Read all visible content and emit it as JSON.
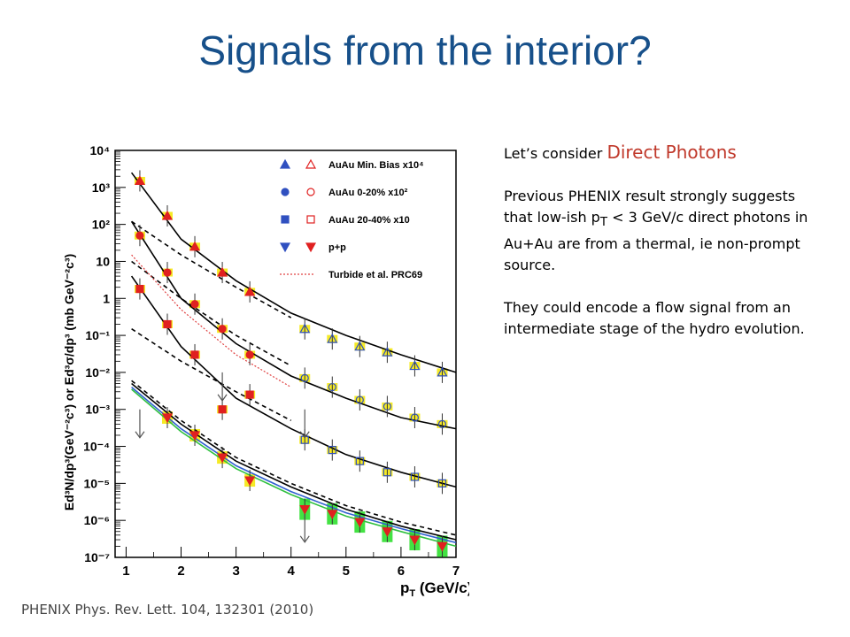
{
  "slide": {
    "title": "Signals from the interior?",
    "citation": "PHENIX Phys. Rev. Lett. 104, 132301 (2010)"
  },
  "text": {
    "line1_prefix": "Let’s consider ",
    "line1_emph": "Direct Photons",
    "para2_a": "Previous PHENIX result strongly suggests that low-ish p",
    "para2_sub": "T",
    "para2_b": " < 3 GeV/c direct photons in Au+Au are from a thermal, ie non-prompt source.",
    "para3": "They could encode a flow signal from an intermediate stage of the hydro evolution."
  },
  "colors": {
    "title": "#17508a",
    "emphasis": "#c0392b",
    "red_markers": "#e02020",
    "blue_markers": "#3050c0",
    "yellow_band": "#f3e600",
    "green_band": "#22dd22"
  },
  "chart_data": {
    "type": "scatter",
    "xlabel": "p_T (GeV/c)",
    "ylabel": "Ed³N/dp³(GeV⁻²c³) or Ed³σ/dp³ (mb GeV⁻²c³)",
    "xlim": [
      0.8,
      7
    ],
    "ylim": [
      1e-07,
      10000.0
    ],
    "yscale": "log",
    "x_ticks": [
      "1",
      "2",
      "3",
      "4",
      "5",
      "6",
      "7"
    ],
    "y_ticks": [
      "10⁻⁷",
      "10⁻⁶",
      "10⁻⁵",
      "10⁻⁴",
      "10⁻³",
      "10⁻²",
      "10⁻¹",
      "1",
      "10",
      "10²",
      "10³",
      "10⁴"
    ],
    "legend": {
      "placement": "top-right",
      "entries": [
        "AuAu Min. Bias x10⁴",
        "AuAu 0-20% x10²",
        "AuAu 20-40% x10",
        "p+p",
        "Turbide et al. PRC69"
      ]
    },
    "series": [
      {
        "name": "AuAu Min. Bias x10⁴",
        "marker": "triangle",
        "x": [
          1.25,
          1.75,
          2.25,
          2.75,
          3.25,
          4.25,
          4.75,
          5.25,
          5.75,
          6.25,
          6.75
        ],
        "y": [
          1500,
          170,
          25,
          5,
          1.5,
          0.15,
          0.08,
          0.05,
          0.035,
          0.015,
          0.01
        ]
      },
      {
        "name": "AuAu 0-20% x10²",
        "marker": "circle",
        "x": [
          1.25,
          1.75,
          2.25,
          2.75,
          3.25,
          4.25,
          4.75,
          5.25,
          5.75,
          6.25,
          6.75
        ],
        "y": [
          50,
          5,
          0.7,
          0.15,
          0.03,
          0.007,
          0.004,
          0.0018,
          0.0012,
          0.0006,
          0.0004
        ]
      },
      {
        "name": "AuAu 20-40% x10",
        "marker": "square",
        "x": [
          1.25,
          1.75,
          2.25,
          2.75,
          3.25,
          4.25,
          4.75,
          5.25,
          5.75,
          6.25,
          6.75
        ],
        "y": [
          1.8,
          0.2,
          0.03,
          0.001,
          0.0025,
          0.00015,
          8e-05,
          4e-05,
          2e-05,
          1.5e-05,
          1e-05
        ]
      },
      {
        "name": "p+p",
        "marker": "triangle-down",
        "x": [
          1.75,
          2.25,
          2.75,
          3.25,
          4.25,
          4.75,
          5.25,
          5.75,
          6.25,
          6.75
        ],
        "y": [
          0.0006,
          0.0002,
          5e-05,
          1.2e-05,
          2e-06,
          1.5e-06,
          9e-07,
          5e-07,
          3e-07,
          2e-07
        ]
      }
    ],
    "upper_limits": [
      {
        "x": 1.25,
        "y": 0.001
      },
      {
        "x": 2.75,
        "y": 0.01
      },
      {
        "x": 4.25,
        "y": 0.001
      },
      {
        "x": 4.25,
        "y": 1.5e-06
      }
    ],
    "curves": [
      {
        "style": "solid",
        "x": [
          1.1,
          2,
          3,
          4,
          5,
          6,
          7
        ],
        "y": [
          2500,
          40,
          3,
          0.4,
          0.1,
          0.03,
          0.01
        ]
      },
      {
        "style": "dashed",
        "x": [
          1.1,
          2,
          3,
          4
        ],
        "y": [
          120,
          15,
          2,
          0.3
        ]
      },
      {
        "style": "solid",
        "x": [
          1.1,
          2,
          3,
          4,
          5,
          6,
          7
        ],
        "y": [
          120,
          1,
          0.06,
          0.008,
          0.002,
          0.0006,
          0.0003
        ]
      },
      {
        "style": "dashed",
        "x": [
          1.1,
          2,
          3,
          4
        ],
        "y": [
          10,
          1,
          0.1,
          0.015
        ]
      },
      {
        "style": "dotted-red",
        "x": [
          1.1,
          2,
          3,
          4
        ],
        "y": [
          15,
          0.5,
          0.03,
          0.004
        ]
      },
      {
        "style": "solid",
        "x": [
          1.1,
          2,
          3,
          4,
          5,
          6,
          7
        ],
        "y": [
          4,
          0.05,
          0.002,
          0.0003,
          6e-05,
          2e-05,
          8e-06
        ]
      },
      {
        "style": "dashed",
        "x": [
          1.1,
          2,
          3,
          4
        ],
        "y": [
          0.15,
          0.02,
          0.003,
          0.0005
        ]
      },
      {
        "style": "solid",
        "x": [
          1.1,
          2,
          3,
          4,
          5,
          6,
          7
        ],
        "y": [
          0.005,
          0.0004,
          4e-05,
          8e-06,
          2e-06,
          7e-07,
          3e-07
        ]
      },
      {
        "style": "dashed",
        "x": [
          1.1,
          2,
          3,
          4,
          5,
          6,
          7
        ],
        "y": [
          0.006,
          0.0005,
          5e-05,
          1e-05,
          2.5e-06,
          9e-07,
          4e-07
        ]
      },
      {
        "style": "solid-blue",
        "x": [
          1.1,
          2,
          3,
          4,
          5,
          6,
          7
        ],
        "y": [
          0.004,
          0.0003,
          3e-05,
          6e-06,
          1.6e-06,
          6e-07,
          2.5e-07
        ]
      },
      {
        "style": "solid-green",
        "x": [
          1.1,
          2,
          3,
          4,
          5,
          6,
          7
        ],
        "y": [
          0.0035,
          0.00025,
          2.5e-05,
          5e-06,
          1.3e-06,
          5e-07,
          2e-07
        ]
      }
    ]
  }
}
